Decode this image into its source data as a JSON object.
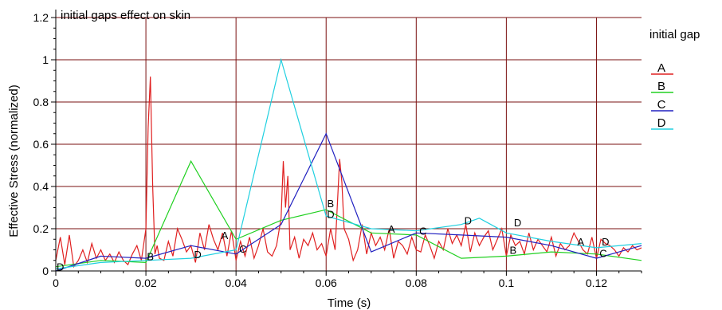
{
  "chart_data": {
    "type": "line",
    "title": "initial gaps effect on skin",
    "xlabel": "Time (s)",
    "ylabel": "Effective Stress (normalized)",
    "xlim": [
      0,
      0.13
    ],
    "ylim": [
      0,
      1.2
    ],
    "xticks": [
      "0",
      "0.02",
      "0.04",
      "0.06",
      "0.08",
      "0.1",
      "0.12"
    ],
    "xtick_values": [
      0,
      0.02,
      0.04,
      0.06,
      0.08,
      0.1,
      0.12
    ],
    "yticks": [
      "0",
      "0.2",
      "0.4",
      "0.6",
      "0.8",
      "1",
      "1.2"
    ],
    "ytick_values": [
      0,
      0.2,
      0.4,
      0.6,
      0.8,
      1.0,
      1.2
    ],
    "grid": true,
    "grid_color": "#7a1010",
    "legend_title": "initial gap",
    "legend_position": "right",
    "series": [
      {
        "name": "A",
        "color": "#e02020",
        "marker_points": [
          [
            0.0375,
            0.17
          ],
          [
            0.0745,
            0.2
          ],
          [
            0.1165,
            0.14
          ]
        ],
        "x": [
          0,
          0.001,
          0.002,
          0.003,
          0.004,
          0.005,
          0.006,
          0.007,
          0.008,
          0.009,
          0.01,
          0.011,
          0.012,
          0.013,
          0.014,
          0.015,
          0.016,
          0.017,
          0.018,
          0.019,
          0.02,
          0.0205,
          0.021,
          0.0215,
          0.022,
          0.0225,
          0.023,
          0.024,
          0.025,
          0.026,
          0.027,
          0.028,
          0.029,
          0.03,
          0.031,
          0.032,
          0.033,
          0.034,
          0.035,
          0.036,
          0.037,
          0.038,
          0.039,
          0.04,
          0.041,
          0.042,
          0.043,
          0.044,
          0.045,
          0.046,
          0.047,
          0.048,
          0.049,
          0.05,
          0.0505,
          0.051,
          0.0515,
          0.052,
          0.053,
          0.054,
          0.055,
          0.056,
          0.057,
          0.058,
          0.059,
          0.06,
          0.061,
          0.062,
          0.063,
          0.0635,
          0.064,
          0.065,
          0.066,
          0.067,
          0.068,
          0.069,
          0.07,
          0.071,
          0.072,
          0.073,
          0.074,
          0.075,
          0.076,
          0.077,
          0.078,
          0.079,
          0.08,
          0.081,
          0.082,
          0.083,
          0.084,
          0.085,
          0.086,
          0.087,
          0.088,
          0.089,
          0.09,
          0.091,
          0.092,
          0.093,
          0.094,
          0.095,
          0.096,
          0.097,
          0.098,
          0.099,
          0.1,
          0.101,
          0.102,
          0.103,
          0.104,
          0.105,
          0.106,
          0.107,
          0.108,
          0.109,
          0.11,
          0.111,
          0.112,
          0.113,
          0.114,
          0.115,
          0.116,
          0.117,
          0.118,
          0.119,
          0.12,
          0.121,
          0.122,
          0.123,
          0.124,
          0.125,
          0.126,
          0.127,
          0.128,
          0.129,
          0.13
        ],
        "values": [
          0.05,
          0.16,
          0.03,
          0.17,
          0.02,
          0.05,
          0.1,
          0.04,
          0.13,
          0.06,
          0.1,
          0.05,
          0.08,
          0.04,
          0.09,
          0.05,
          0.03,
          0.08,
          0.12,
          0.05,
          0.2,
          0.68,
          0.92,
          0.4,
          0.08,
          0.12,
          0.06,
          0.05,
          0.14,
          0.07,
          0.2,
          0.15,
          0.09,
          0.12,
          0.04,
          0.18,
          0.1,
          0.22,
          0.15,
          0.1,
          0.18,
          0.07,
          0.19,
          0.05,
          0.14,
          0.07,
          0.16,
          0.06,
          0.12,
          0.2,
          0.09,
          0.07,
          0.12,
          0.25,
          0.52,
          0.3,
          0.45,
          0.1,
          0.16,
          0.06,
          0.15,
          0.12,
          0.18,
          0.1,
          0.13,
          0.07,
          0.2,
          0.1,
          0.53,
          0.42,
          0.2,
          0.15,
          0.05,
          0.1,
          0.22,
          0.08,
          0.18,
          0.12,
          0.16,
          0.1,
          0.2,
          0.06,
          0.14,
          0.12,
          0.08,
          0.16,
          0.1,
          0.09,
          0.17,
          0.12,
          0.06,
          0.14,
          0.1,
          0.2,
          0.13,
          0.17,
          0.12,
          0.22,
          0.09,
          0.18,
          0.12,
          0.16,
          0.19,
          0.1,
          0.15,
          0.2,
          0.07,
          0.17,
          0.12,
          0.14,
          0.08,
          0.18,
          0.1,
          0.15,
          0.12,
          0.09,
          0.16,
          0.07,
          0.13,
          0.1,
          0.12,
          0.18,
          0.14,
          0.1,
          0.08,
          0.16,
          0.06,
          0.15,
          0.13,
          0.12,
          0.1,
          0.07,
          0.11,
          0.09,
          0.12,
          0.1,
          0.11
        ]
      },
      {
        "name": "B",
        "color": "#20d020",
        "marker_points": [
          [
            0.021,
            0.07
          ],
          [
            0.061,
            0.32
          ],
          [
            0.1015,
            0.1
          ]
        ],
        "x": [
          0,
          0.01,
          0.02,
          0.03,
          0.04,
          0.05,
          0.06,
          0.07,
          0.08,
          0.09,
          0.1,
          0.11,
          0.12,
          0.13
        ],
        "values": [
          0.02,
          0.05,
          0.04,
          0.52,
          0.15,
          0.24,
          0.29,
          0.18,
          0.17,
          0.06,
          0.07,
          0.09,
          0.08,
          0.05
        ]
      },
      {
        "name": "C",
        "color": "#2020c0",
        "marker_points": [
          [
            0.0415,
            0.105
          ],
          [
            0.0815,
            0.19
          ],
          [
            0.1215,
            0.085
          ]
        ],
        "x": [
          0,
          0.01,
          0.02,
          0.03,
          0.04,
          0.05,
          0.06,
          0.07,
          0.08,
          0.09,
          0.1,
          0.11,
          0.12,
          0.13
        ],
        "values": [
          0.0,
          0.07,
          0.06,
          0.12,
          0.08,
          0.22,
          0.65,
          0.09,
          0.18,
          0.17,
          0.16,
          0.12,
          0.06,
          0.12
        ]
      },
      {
        "name": "D",
        "color": "#20d0e0",
        "marker_points": [
          [
            0.001,
            0.02
          ],
          [
            0.0315,
            0.08
          ],
          [
            0.061,
            0.27
          ],
          [
            0.0915,
            0.24
          ],
          [
            0.1025,
            0.23
          ],
          [
            0.122,
            0.14
          ]
        ],
        "x": [
          0,
          0.01,
          0.02,
          0.03,
          0.04,
          0.05,
          0.06,
          0.07,
          0.08,
          0.09,
          0.094,
          0.1,
          0.11,
          0.12,
          0.13
        ],
        "values": [
          0.01,
          0.04,
          0.05,
          0.06,
          0.1,
          1.0,
          0.26,
          0.2,
          0.19,
          0.22,
          0.25,
          0.18,
          0.14,
          0.11,
          0.13
        ]
      }
    ]
  }
}
